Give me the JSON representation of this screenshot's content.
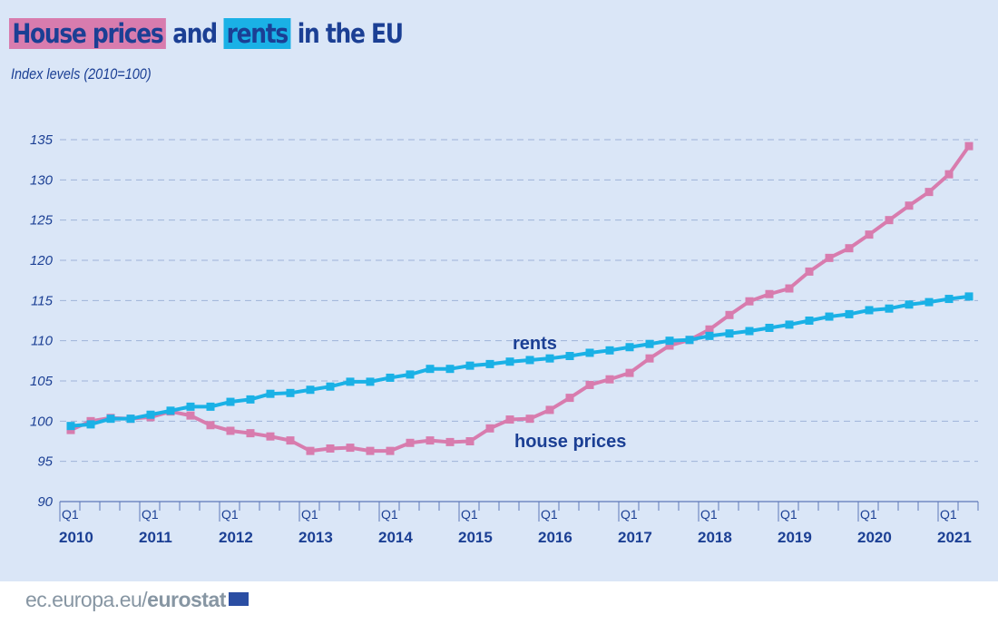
{
  "title": {
    "part1": "House prices",
    "part2": " and ",
    "part3": "rents",
    "part4": " in the EU"
  },
  "subtitle": "Index levels (2010=100)",
  "footer": {
    "prefix": "ec.europa.eu/",
    "brand": "eurostat",
    "icon": "eu-flag-icon"
  },
  "colors": {
    "house_prices": "#d87cae",
    "rents": "#1ab1e6",
    "text": "#1b3f94",
    "background": "#dae6f7"
  },
  "chart_data": {
    "type": "line",
    "title": "House prices and rents in the EU",
    "ylabel": "Index levels (2010=100)",
    "ylim": [
      90,
      135
    ],
    "yticks": [
      "90",
      "95",
      "100",
      "105",
      "110",
      "115",
      "120",
      "125",
      "130",
      "135"
    ],
    "grid": "horizontal dashed",
    "x_start": "2010 Q1",
    "x_end": "2021 Q2",
    "quarter_label": "Q1",
    "years": [
      "2010",
      "2011",
      "2012",
      "2013",
      "2014",
      "2015",
      "2016",
      "2017",
      "2018",
      "2019",
      "2020",
      "2021"
    ],
    "series": [
      {
        "name": "rents",
        "values": [
          99.4,
          99.6,
          100.3,
          100.3,
          100.8,
          101.3,
          101.8,
          101.8,
          102.4,
          102.7,
          103.4,
          103.5,
          103.9,
          104.3,
          104.9,
          104.9,
          105.4,
          105.8,
          106.5,
          106.5,
          106.9,
          107.1,
          107.4,
          107.6,
          107.8,
          108.1,
          108.5,
          108.8,
          109.2,
          109.6,
          110.0,
          110.1,
          110.6,
          110.9,
          111.2,
          111.6,
          112.0,
          112.5,
          113.0,
          113.3,
          113.8,
          114.0,
          114.5,
          114.8,
          115.2,
          115.5
        ]
      },
      {
        "name": "house prices",
        "values": [
          98.9,
          100.0,
          100.4,
          100.3,
          100.5,
          101.2,
          100.7,
          99.5,
          98.8,
          98.5,
          98.1,
          97.6,
          96.3,
          96.6,
          96.7,
          96.3,
          96.3,
          97.3,
          97.6,
          97.4,
          97.5,
          99.1,
          100.2,
          100.3,
          101.4,
          102.9,
          104.5,
          105.2,
          106.0,
          107.8,
          109.4,
          110.1,
          111.4,
          113.2,
          114.9,
          115.8,
          116.5,
          118.6,
          120.3,
          121.5,
          123.2,
          125.0,
          126.8,
          128.5,
          130.7,
          134.2
        ]
      }
    ]
  }
}
